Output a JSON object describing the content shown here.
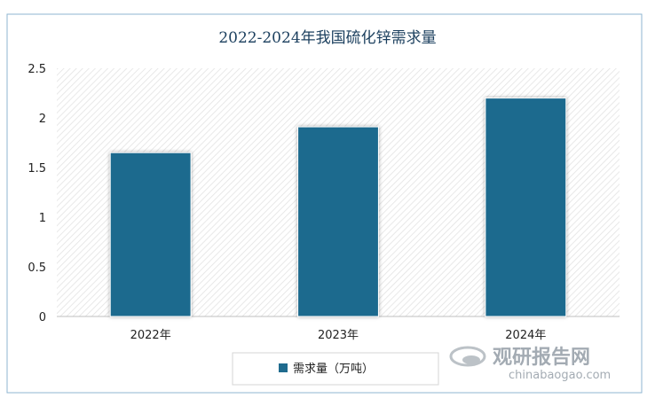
{
  "chart_data": {
    "type": "bar",
    "title": "2022-2024年我国硫化锌需求量",
    "categories": [
      "2022年",
      "2023年",
      "2024年"
    ],
    "series": [
      {
        "name": "需求量（万吨）",
        "values": [
          1.65,
          1.91,
          2.2
        ]
      }
    ],
    "ylim": [
      0,
      2.5
    ],
    "yticks": [
      "0",
      "0.5",
      "1",
      "1.5",
      "2",
      "2.5"
    ],
    "ytick_values": [
      0,
      0.5,
      1,
      1.5,
      2,
      2.5
    ],
    "legend_position": "bottom",
    "grid": false,
    "colors": {
      "bar": "#1f6b8e",
      "title": "#1b3f5e",
      "frame": "#8fb6d1"
    }
  },
  "watermark": {
    "name_cn": "观研报告网",
    "url": "chinabaogao.com"
  }
}
